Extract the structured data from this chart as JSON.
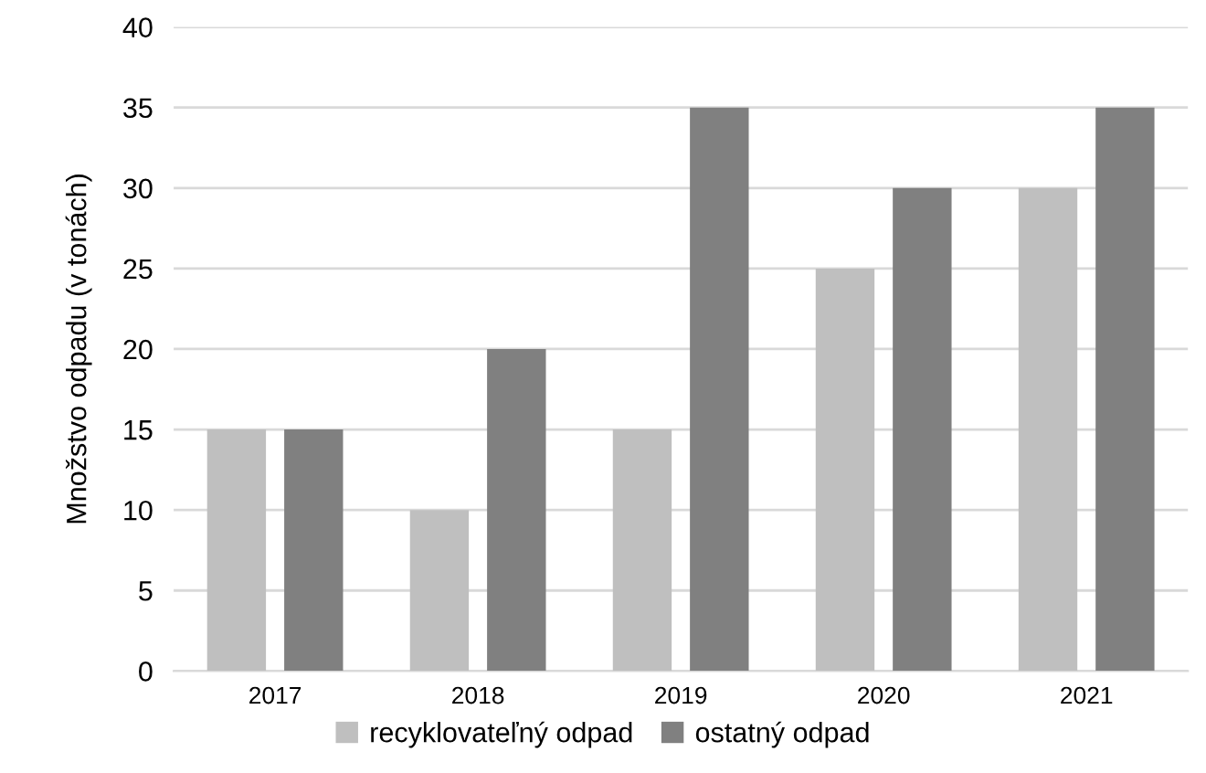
{
  "chart_data": {
    "type": "bar",
    "ylabel": "Množstvo odpadu (v tonách)",
    "categories": [
      "2017",
      "2018",
      "2019",
      "2020",
      "2021"
    ],
    "series": [
      {
        "name": "recyklovateľný odpad",
        "color": "#bfbfbf",
        "values": [
          15,
          10,
          15,
          25,
          30
        ]
      },
      {
        "name": "ostatný odpad",
        "color": "#808080",
        "values": [
          15,
          20,
          35,
          30,
          35
        ]
      }
    ],
    "ylim": [
      0,
      40
    ],
    "yticks": [
      0,
      5,
      10,
      15,
      20,
      25,
      30,
      35,
      40
    ],
    "grid": "y",
    "legend": "bottom"
  }
}
